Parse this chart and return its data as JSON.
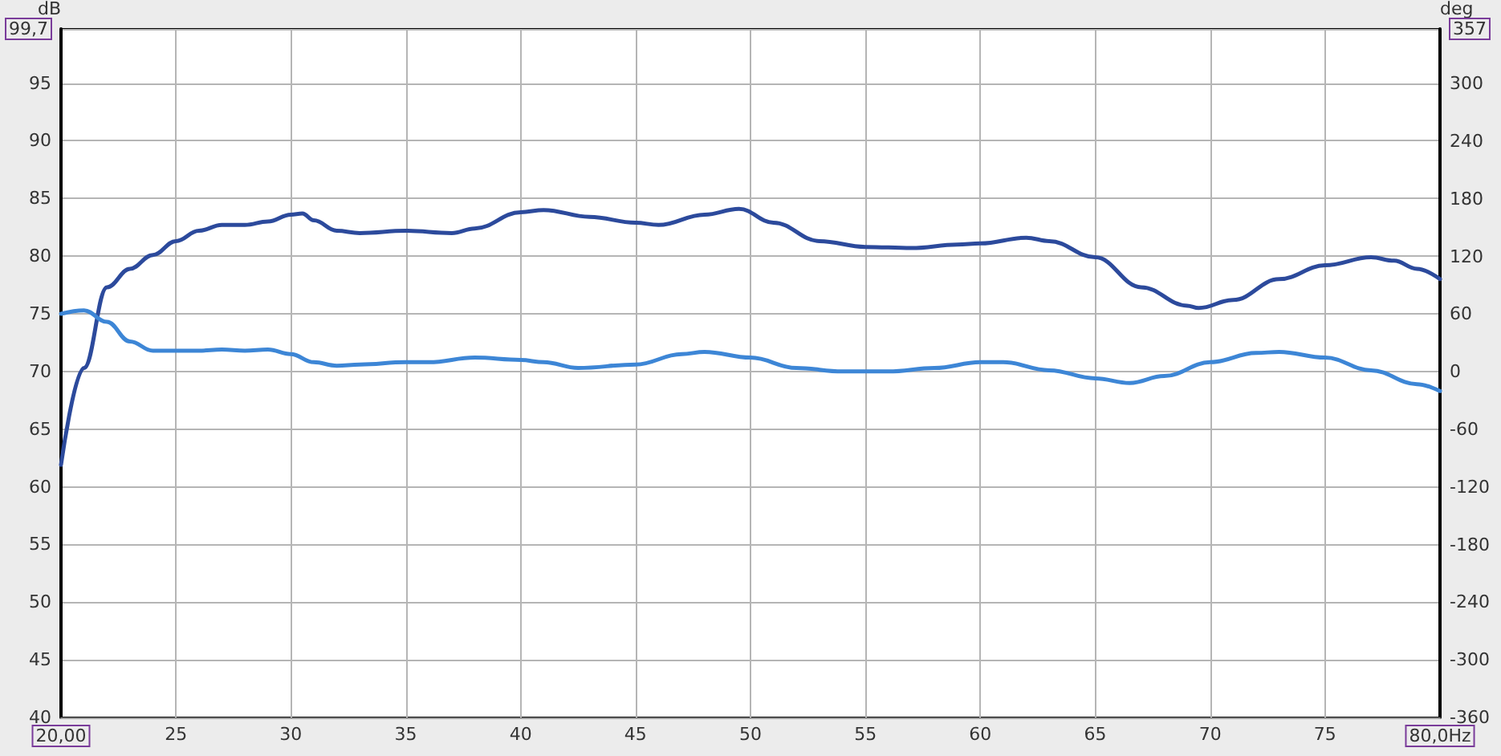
{
  "chart_data": {
    "type": "line",
    "ylabel": "dB",
    "y2label": "deg",
    "x": [
      20,
      21,
      22,
      23,
      24,
      25,
      26,
      27,
      28,
      29,
      30,
      30.5,
      31,
      32,
      33,
      35,
      37,
      38,
      40,
      41,
      43,
      45,
      46,
      48,
      49.5,
      51,
      53,
      55,
      57,
      59,
      60,
      62,
      63,
      65,
      67,
      69,
      69.5,
      71,
      73,
      75,
      77,
      78,
      79,
      80
    ],
    "series": [
      {
        "color": "#2c4a9c",
        "values": [
          61.9,
          70.3,
          77.3,
          78.9,
          80.1,
          81.3,
          82.2,
          82.7,
          82.7,
          83.0,
          83.6,
          83.7,
          83.1,
          82.2,
          82.0,
          82.2,
          82.0,
          82.4,
          83.8,
          84.0,
          83.4,
          82.9,
          82.7,
          83.6,
          84.1,
          82.9,
          81.3,
          80.8,
          80.7,
          81.0,
          81.1,
          81.6,
          81.3,
          79.9,
          77.3,
          75.7,
          75.5,
          76.2,
          78.0,
          79.2,
          79.9,
          79.6,
          78.9,
          78.0
        ]
      },
      {
        "color": "#3d86d6",
        "x": [
          20,
          21,
          22,
          23,
          24,
          26,
          27,
          28,
          29,
          30,
          31,
          32,
          33,
          35,
          36,
          38,
          40,
          41,
          42.5,
          45,
          47,
          48,
          50,
          52,
          54,
          56,
          58,
          60,
          61,
          63,
          65,
          66.5,
          68,
          70,
          72,
          73,
          75,
          77,
          79,
          80
        ],
        "values": [
          75.0,
          75.3,
          74.3,
          72.6,
          71.8,
          71.8,
          71.9,
          71.8,
          71.9,
          71.5,
          70.8,
          70.5,
          70.6,
          70.8,
          70.8,
          71.2,
          71.0,
          70.8,
          70.3,
          70.6,
          71.5,
          71.7,
          71.2,
          70.3,
          70.0,
          70.0,
          70.3,
          70.8,
          70.8,
          70.1,
          69.4,
          69.0,
          69.6,
          70.8,
          71.6,
          71.7,
          71.2,
          70.1,
          68.9,
          68.3
        ]
      }
    ],
    "xlim": [
      20,
      80
    ],
    "xticks": [
      {
        "value": 20,
        "label": "20,00"
      },
      25,
      30,
      35,
      40,
      45,
      50,
      55,
      60,
      65,
      70,
      75,
      {
        "value": 80,
        "label": "80,0Hz"
      }
    ],
    "ylim": [
      40,
      99.7
    ],
    "yticks": [
      40,
      45,
      50,
      55,
      60,
      65,
      70,
      75,
      80,
      85,
      90,
      95,
      {
        "value": 99.7,
        "label": "99,7"
      }
    ],
    "y2lim": [
      -360,
      357
    ],
    "y2ticks": [
      -360,
      -300,
      -240,
      -180,
      -120,
      -60,
      0,
      60,
      120,
      180,
      240,
      300,
      {
        "value": 357,
        "label": "357"
      }
    ],
    "grid": true,
    "marker": "none",
    "line_style": "solid"
  }
}
